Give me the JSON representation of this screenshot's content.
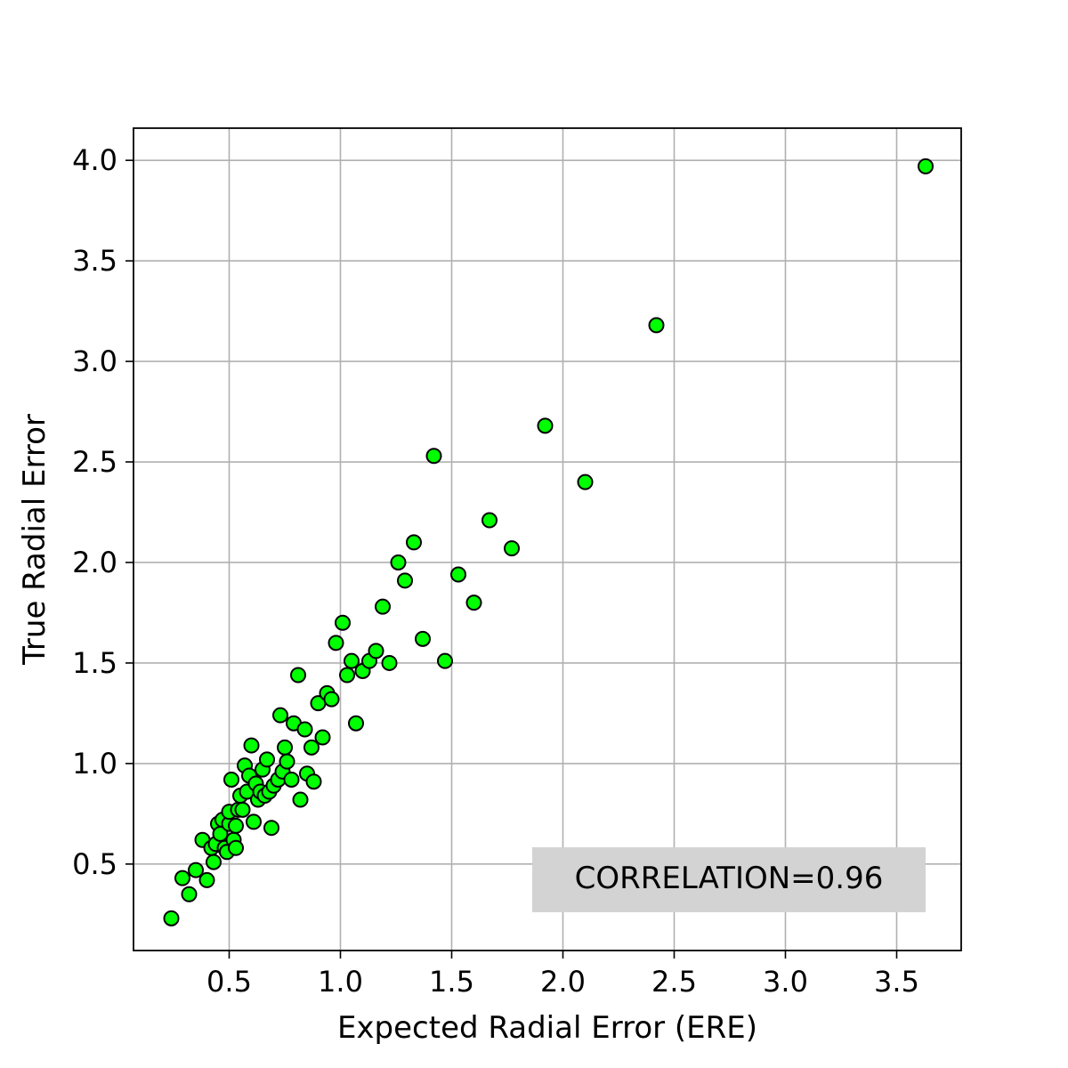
{
  "chart_data": {
    "type": "scatter",
    "title": "",
    "xlabel": "Expected Radial Error (ERE)",
    "ylabel": "True Radial Error",
    "xlim": [
      0.07,
      3.79
    ],
    "ylim": [
      0.07,
      4.16
    ],
    "xticks": [
      0.5,
      1.0,
      1.5,
      2.0,
      2.5,
      3.0,
      3.5
    ],
    "xtick_labels": [
      "0.5",
      "1.0",
      "1.5",
      "2.0",
      "2.5",
      "3.0",
      "3.5"
    ],
    "yticks": [
      0.5,
      1.0,
      1.5,
      2.0,
      2.5,
      3.0,
      3.5,
      4.0
    ],
    "ytick_labels": [
      "0.5",
      "1.0",
      "1.5",
      "2.0",
      "2.5",
      "3.0",
      "3.5",
      "4.0"
    ],
    "grid": true,
    "marker_color": "#00ff00",
    "marker_edge_color": "#000000",
    "annotation": {
      "text": "CORRELATION=0.96",
      "position": "bottom-right",
      "background": "#d3d3d3"
    },
    "series": [
      {
        "points": [
          [
            0.24,
            0.23
          ],
          [
            0.29,
            0.43
          ],
          [
            0.32,
            0.35
          ],
          [
            0.35,
            0.47
          ],
          [
            0.38,
            0.62
          ],
          [
            0.4,
            0.42
          ],
          [
            0.42,
            0.58
          ],
          [
            0.43,
            0.51
          ],
          [
            0.44,
            0.6
          ],
          [
            0.45,
            0.7
          ],
          [
            0.46,
            0.65
          ],
          [
            0.47,
            0.72
          ],
          [
            0.48,
            0.58
          ],
          [
            0.49,
            0.56
          ],
          [
            0.5,
            0.7
          ],
          [
            0.5,
            0.76
          ],
          [
            0.51,
            0.92
          ],
          [
            0.52,
            0.62
          ],
          [
            0.53,
            0.58
          ],
          [
            0.53,
            0.69
          ],
          [
            0.54,
            0.77
          ],
          [
            0.55,
            0.84
          ],
          [
            0.56,
            0.77
          ],
          [
            0.57,
            0.99
          ],
          [
            0.58,
            0.86
          ],
          [
            0.59,
            0.94
          ],
          [
            0.6,
            1.09
          ],
          [
            0.61,
            0.71
          ],
          [
            0.62,
            0.9
          ],
          [
            0.63,
            0.82
          ],
          [
            0.64,
            0.86
          ],
          [
            0.65,
            0.97
          ],
          [
            0.66,
            0.84
          ],
          [
            0.67,
            1.02
          ],
          [
            0.68,
            0.86
          ],
          [
            0.69,
            0.68
          ],
          [
            0.7,
            0.89
          ],
          [
            0.72,
            0.92
          ],
          [
            0.73,
            1.24
          ],
          [
            0.74,
            0.96
          ],
          [
            0.75,
            1.08
          ],
          [
            0.76,
            1.01
          ],
          [
            0.78,
            0.92
          ],
          [
            0.79,
            1.2
          ],
          [
            0.81,
            1.44
          ],
          [
            0.82,
            0.82
          ],
          [
            0.84,
            1.17
          ],
          [
            0.85,
            0.95
          ],
          [
            0.87,
            1.08
          ],
          [
            0.88,
            0.91
          ],
          [
            0.9,
            1.3
          ],
          [
            0.92,
            1.13
          ],
          [
            0.94,
            1.35
          ],
          [
            0.96,
            1.32
          ],
          [
            0.98,
            1.6
          ],
          [
            1.01,
            1.7
          ],
          [
            1.03,
            1.44
          ],
          [
            1.05,
            1.51
          ],
          [
            1.07,
            1.2
          ],
          [
            1.1,
            1.46
          ],
          [
            1.13,
            1.51
          ],
          [
            1.16,
            1.56
          ],
          [
            1.19,
            1.78
          ],
          [
            1.22,
            1.5
          ],
          [
            1.26,
            2.0
          ],
          [
            1.29,
            1.91
          ],
          [
            1.33,
            2.1
          ],
          [
            1.37,
            1.62
          ],
          [
            1.42,
            2.53
          ],
          [
            1.47,
            1.51
          ],
          [
            1.53,
            1.94
          ],
          [
            1.6,
            1.8
          ],
          [
            1.67,
            2.21
          ],
          [
            1.77,
            2.07
          ],
          [
            1.92,
            2.68
          ],
          [
            2.1,
            2.4
          ],
          [
            2.42,
            3.18
          ],
          [
            3.63,
            3.97
          ]
        ]
      }
    ]
  }
}
